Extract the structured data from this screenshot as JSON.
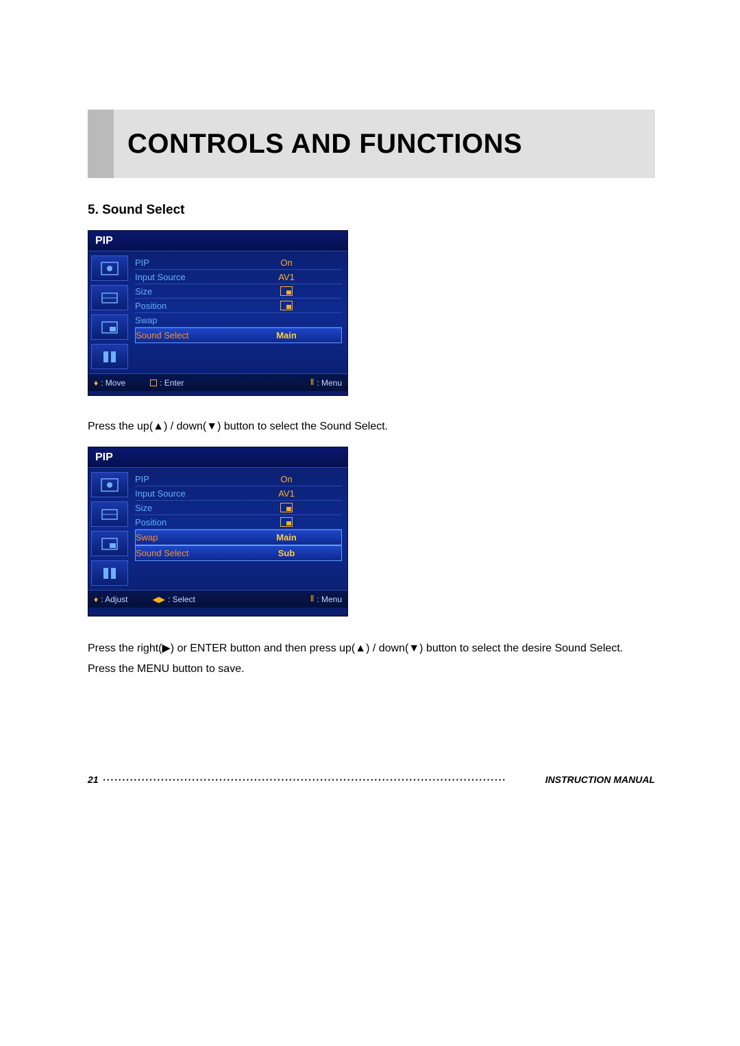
{
  "page": {
    "banner_title": "CONTROLS AND FUNCTIONS",
    "section_heading": "5. Sound Select",
    "page_number": "21",
    "footer_text": "INSTRUCTION MANUAL",
    "dots": "········································································································"
  },
  "osd_common": {
    "title": "PIP",
    "sidebar_icons": [
      "picture-icon",
      "screen-icon",
      "pip-icon",
      "setup-icon"
    ]
  },
  "osd1": {
    "rows": [
      {
        "label": "PIP",
        "value": "On",
        "highlight": false,
        "icon": null
      },
      {
        "label": "Input Source",
        "value": "AV1",
        "highlight": false,
        "icon": null
      },
      {
        "label": "Size",
        "value": "",
        "highlight": false,
        "icon": "size-small"
      },
      {
        "label": "Position",
        "value": "",
        "highlight": false,
        "icon": "pos-br"
      },
      {
        "label": "Swap",
        "value": "",
        "highlight": false,
        "icon": null
      },
      {
        "label": "Sound Select",
        "value": "Main",
        "highlight": true,
        "icon": null
      }
    ],
    "help": {
      "move_label": ": Move",
      "enter_label": ": Enter",
      "menu_label": ": Menu"
    }
  },
  "osd2": {
    "rows": [
      {
        "label": "PIP",
        "value": "On",
        "highlight": false,
        "icon": null
      },
      {
        "label": "Input Source",
        "value": "AV1",
        "highlight": false,
        "icon": null
      },
      {
        "label": "Size",
        "value": "",
        "highlight": false,
        "icon": "size-small"
      },
      {
        "label": "Position",
        "value": "",
        "highlight": false,
        "icon": "pos-br"
      },
      {
        "label": "Swap",
        "value": "Main",
        "highlight": true,
        "icon": null
      },
      {
        "label": "Sound Select",
        "value": "Sub",
        "highlight": true,
        "icon": null
      }
    ],
    "help": {
      "move_label": ": Adjust",
      "enter_label": ": Select",
      "menu_label": ": Menu"
    }
  },
  "instructions": {
    "line1": "Press the up(▲) / down(▼) button to select the Sound Select.",
    "line2": "Press the right(▶) or ENTER button and then press up(▲) / down(▼) button to select the desire Sound Select.",
    "line3": "Press the MENU button to save."
  },
  "colors": {
    "osd_bg_top": "#0a1d6a",
    "osd_bg_mid": "#0f2a90",
    "label_color": "#5fb0ff",
    "value_color": "#ffb020",
    "highlight_label": "#ff8c20",
    "highlight_value": "#ffcc40",
    "banner_bg": "#e0e0e0",
    "banner_bar": "#bababa"
  }
}
